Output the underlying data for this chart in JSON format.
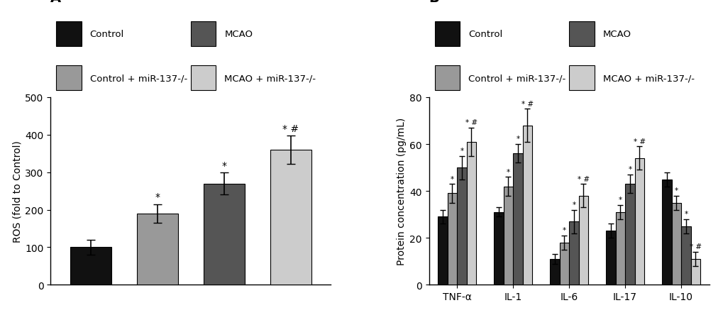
{
  "panel_A": {
    "values": [
      100,
      190,
      270,
      360
    ],
    "errors": [
      20,
      25,
      30,
      38
    ],
    "colors": [
      "#111111",
      "#999999",
      "#555555",
      "#cccccc"
    ],
    "ylabel": "ROS (fold to Control)",
    "ylim": [
      0,
      500
    ],
    "yticks": [
      0,
      100,
      200,
      300,
      400,
      500
    ],
    "annotations": [
      "",
      "*",
      "*",
      "*#"
    ],
    "title": "A"
  },
  "panel_B": {
    "groups": [
      "TNF-α",
      "IL-1",
      "IL-6",
      "IL-17",
      "IL-10"
    ],
    "values_control": [
      29,
      31,
      11,
      23,
      45
    ],
    "values_ctrl_mir": [
      39,
      42,
      18,
      31,
      35
    ],
    "values_mcao": [
      50,
      56,
      27,
      43,
      25
    ],
    "values_mcao_mir": [
      61,
      68,
      38,
      54,
      11
    ],
    "errors_control": [
      3,
      2,
      2,
      3,
      3
    ],
    "errors_ctrl_mir": [
      4,
      4,
      3,
      3,
      3
    ],
    "errors_mcao": [
      5,
      4,
      5,
      4,
      3
    ],
    "errors_mcao_mir": [
      6,
      7,
      5,
      5,
      3
    ],
    "colors": [
      "#111111",
      "#999999",
      "#555555",
      "#cccccc"
    ],
    "ylabel": "Protein concentration (pg/mL)",
    "ylim": [
      0,
      80
    ],
    "yticks": [
      0,
      20,
      40,
      60,
      80
    ],
    "annot_ctrl_mir": [
      "*",
      "*",
      "*",
      "*",
      "*"
    ],
    "annot_mcao": [
      "*",
      "*",
      "*",
      "*",
      "*"
    ],
    "annot_mcao_mir": [
      "*#",
      "*#",
      "*#",
      "*#",
      "*#"
    ],
    "title": "B"
  },
  "legend_labels_col1": [
    "Control",
    "Control + miR-137-/-"
  ],
  "legend_labels_col2": [
    "MCAO",
    "MCAO + miR-137-/-"
  ],
  "legend_colors": [
    "#111111",
    "#999999",
    "#555555",
    "#cccccc"
  ],
  "background_color": "#ffffff",
  "fontsize": 10,
  "title_fontsize": 14
}
